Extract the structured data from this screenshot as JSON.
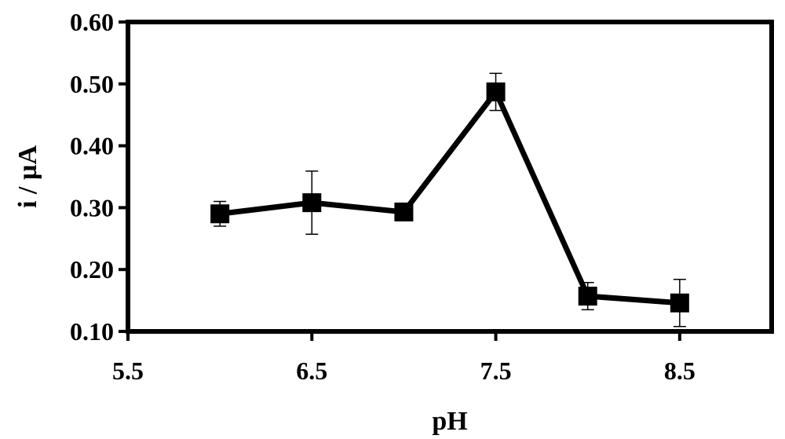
{
  "chart_data": {
    "type": "line",
    "title": "",
    "xlabel": "pH",
    "ylabel": "i / µA",
    "xlim": [
      5.5,
      9.0
    ],
    "ylim": [
      0.1,
      0.6
    ],
    "x_ticks": [
      5.5,
      6.5,
      7.5,
      8.5
    ],
    "x_tick_labels": [
      "5.5",
      "6.5",
      "7.5",
      "8.5"
    ],
    "y_ticks": [
      0.1,
      0.2,
      0.3,
      0.4,
      0.5,
      0.6
    ],
    "y_tick_labels": [
      "0.10",
      "0.20",
      "0.30",
      "0.40",
      "0.50",
      "0.60"
    ],
    "grid": false,
    "legend": "none",
    "marker": "square",
    "line_color": "#000000",
    "series": [
      {
        "x": [
          6.0,
          6.5,
          7.0,
          7.5,
          8.0,
          8.5
        ],
        "y": [
          0.29,
          0.308,
          0.293,
          0.487,
          0.157,
          0.146
        ],
        "error": [
          0.02,
          0.051,
          0.0,
          0.03,
          0.022,
          0.038
        ]
      }
    ]
  }
}
